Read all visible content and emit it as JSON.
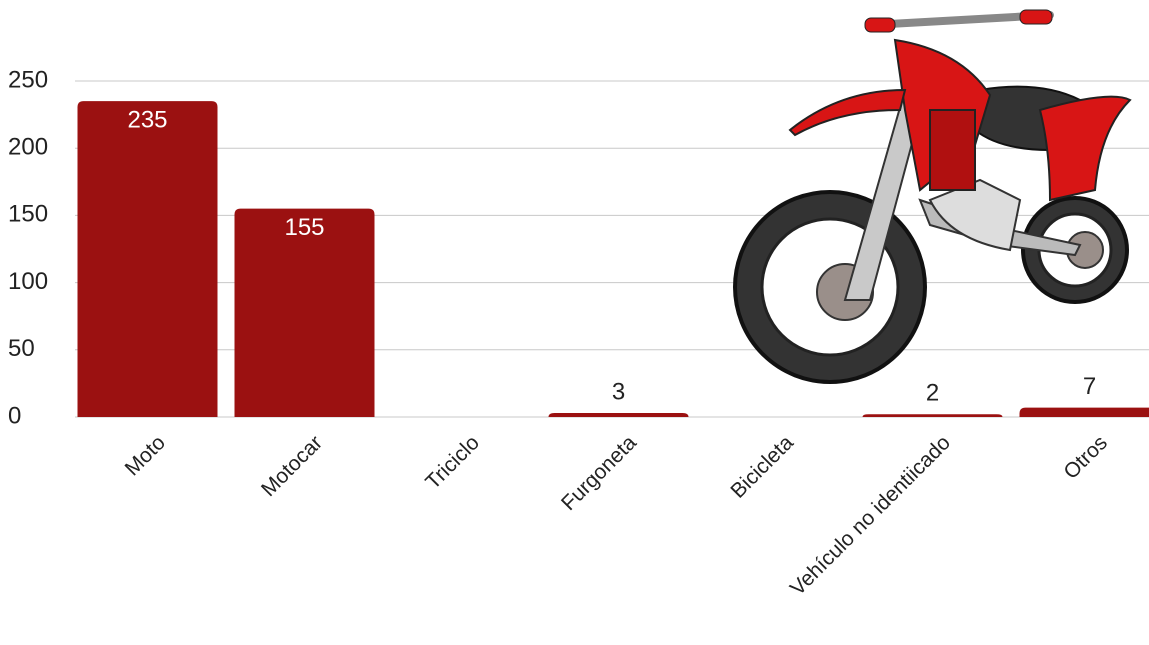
{
  "chart_data": {
    "type": "bar",
    "categories": [
      "Moto",
      "Motocar",
      "Triciclo",
      "Furgoneta",
      "Bicicleta",
      "Vehículo no identiicado",
      "Otros"
    ],
    "values": [
      235,
      155,
      0,
      3,
      0,
      2,
      7
    ],
    "color": "#9b1111",
    "ylim": [
      0,
      250
    ],
    "yticks": [
      0,
      50,
      100,
      150,
      200,
      250
    ],
    "grid": true
  }
}
